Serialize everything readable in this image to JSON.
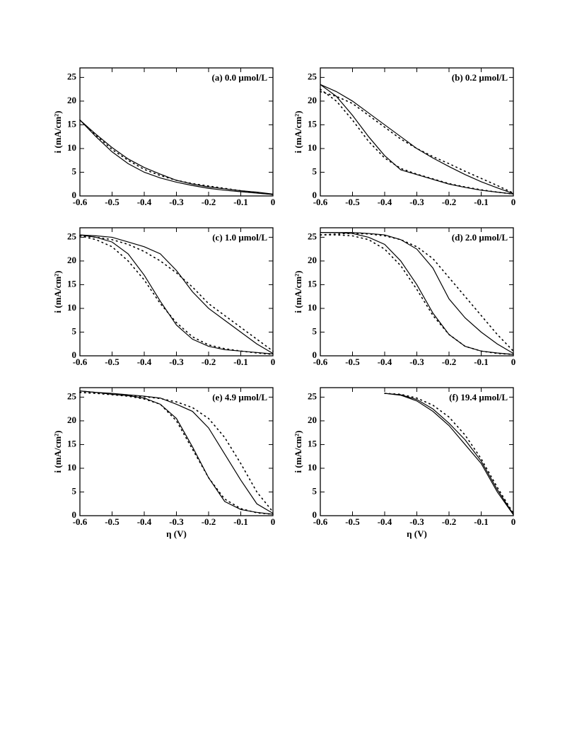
{
  "chart_data": [
    {
      "type": "line",
      "annotation": "(a)  0.0 μmol/L",
      "y_label": "i (mA/cm²)",
      "x": [
        -0.6,
        -0.55,
        -0.5,
        -0.45,
        -0.4,
        -0.35,
        -0.3,
        -0.25,
        -0.2,
        -0.15,
        -0.1,
        -0.05,
        0
      ],
      "series": [
        {
          "color": "#000000",
          "style": "solid",
          "values": [
            16,
            13,
            10.2,
            7.8,
            6,
            4.6,
            3.3,
            2.5,
            1.9,
            1.5,
            1.1,
            0.8,
            0.4
          ]
        },
        {
          "color": "#000000",
          "style": "solid",
          "values": [
            16,
            12.5,
            9.3,
            6.8,
            5,
            3.8,
            2.9,
            2.2,
            1.6,
            1.2,
            0.9,
            0.6,
            0.3
          ]
        },
        {
          "color": "#000000",
          "style": "dotted",
          "values": [
            16,
            12.8,
            9.8,
            7.5,
            5.6,
            4.3,
            3.3,
            2.6,
            2.1,
            1.6,
            1.1,
            0.7,
            0.3
          ]
        }
      ],
      "xlim": [
        -0.6,
        0
      ],
      "ylim": [
        0,
        27
      ],
      "xticks": [
        -0.6,
        -0.5,
        -0.4,
        -0.3,
        -0.2,
        -0.1,
        0
      ],
      "yticks": [
        0,
        5,
        10,
        15,
        20,
        25
      ]
    },
    {
      "type": "line",
      "annotation": "(b)  0.2 μmol/L",
      "y_label": "i (mA/cm²)",
      "x": [
        -0.6,
        -0.55,
        -0.5,
        -0.45,
        -0.4,
        -0.35,
        -0.3,
        -0.25,
        -0.2,
        -0.15,
        -0.1,
        -0.05,
        0
      ],
      "series": [
        {
          "color": "#000000",
          "style": "solid",
          "values": [
            23.5,
            22,
            20,
            17.5,
            15,
            12.5,
            10,
            8,
            6.2,
            4.5,
            3,
            1.7,
            0.5
          ]
        },
        {
          "color": "#000000",
          "style": "solid",
          "values": [
            23.5,
            21,
            17,
            12.5,
            8.5,
            5.5,
            4.5,
            3.5,
            2.5,
            1.8,
            1.2,
            0.8,
            0.4
          ]
        },
        {
          "color": "#000000",
          "style": "dotted",
          "values": [
            22,
            21,
            19.5,
            17,
            14.5,
            12,
            10,
            8.3,
            6.8,
            5.2,
            3.7,
            2.2,
            0.6
          ]
        },
        {
          "color": "#000000",
          "style": "dotted",
          "values": [
            22.5,
            20,
            16,
            11.5,
            8,
            5.8,
            4.6,
            3.6,
            2.6,
            1.9,
            1.3,
            0.8,
            0.4
          ]
        }
      ],
      "xlim": [
        -0.6,
        0
      ],
      "ylim": [
        0,
        27
      ],
      "xticks": [
        -0.6,
        -0.5,
        -0.4,
        -0.3,
        -0.2,
        -0.1,
        0
      ],
      "yticks": [
        0,
        5,
        10,
        15,
        20,
        25
      ]
    },
    {
      "type": "line",
      "annotation": "(c)  1.0 μmol/L",
      "y_label": "i (mA/cm²)",
      "x": [
        -0.6,
        -0.55,
        -0.5,
        -0.45,
        -0.4,
        -0.35,
        -0.3,
        -0.25,
        -0.2,
        -0.15,
        -0.1,
        -0.05,
        0
      ],
      "series": [
        {
          "color": "#000000",
          "style": "solid",
          "values": [
            25.5,
            25.3,
            25,
            24,
            23,
            21.5,
            18,
            13.5,
            10,
            7.5,
            5,
            2.5,
            0.5
          ]
        },
        {
          "color": "#000000",
          "style": "solid",
          "values": [
            25.5,
            25,
            24,
            21.5,
            17,
            11.5,
            6.5,
            3.5,
            2,
            1.3,
            1,
            0.7,
            0.4
          ]
        },
        {
          "color": "#000000",
          "style": "dotted",
          "values": [
            25.3,
            25,
            24.5,
            23.5,
            22,
            20,
            17.5,
            14.5,
            11,
            8.5,
            6,
            3.5,
            1
          ]
        },
        {
          "color": "#000000",
          "style": "dotted",
          "values": [
            25.3,
            24.5,
            23,
            20,
            16,
            11,
            7,
            4,
            2.3,
            1.5,
            1,
            0.6,
            0.3
          ]
        }
      ],
      "xlim": [
        -0.6,
        0
      ],
      "ylim": [
        0,
        27
      ],
      "xticks": [
        -0.6,
        -0.5,
        -0.4,
        -0.3,
        -0.2,
        -0.1,
        0
      ],
      "yticks": [
        0,
        5,
        10,
        15,
        20,
        25
      ]
    },
    {
      "type": "line",
      "annotation": "(d)  2.0 μmol/L",
      "y_label": "i (mA/cm²)",
      "x": [
        -0.6,
        -0.55,
        -0.5,
        -0.45,
        -0.4,
        -0.35,
        -0.3,
        -0.25,
        -0.2,
        -0.15,
        -0.1,
        -0.05,
        0
      ],
      "series": [
        {
          "color": "#000000",
          "style": "solid",
          "values": [
            26,
            26,
            26,
            25.8,
            25.5,
            24.5,
            22.5,
            18.5,
            12,
            8,
            5,
            2.5,
            0.5
          ]
        },
        {
          "color": "#000000",
          "style": "solid",
          "values": [
            26,
            26,
            25.8,
            25,
            23.5,
            20,
            15,
            9,
            4.5,
            2,
            1,
            0.6,
            0.3
          ]
        },
        {
          "color": "#000000",
          "style": "dotted",
          "values": [
            25.5,
            25.7,
            25.8,
            25.7,
            25.3,
            24.5,
            23,
            20.5,
            16.5,
            12.5,
            8.5,
            4.5,
            1
          ]
        },
        {
          "color": "#000000",
          "style": "dotted",
          "values": [
            25.5,
            25.5,
            25.3,
            24.5,
            22.5,
            19,
            14,
            8.5,
            4.5,
            2,
            1,
            0.5,
            0.3
          ]
        }
      ],
      "xlim": [
        -0.6,
        0
      ],
      "ylim": [
        0,
        27
      ],
      "xticks": [
        -0.6,
        -0.5,
        -0.4,
        -0.3,
        -0.2,
        -0.1,
        0
      ],
      "yticks": [
        0,
        5,
        10,
        15,
        20,
        25
      ]
    },
    {
      "type": "line",
      "annotation": "(e)  4.9 μmol/L",
      "y_label": "i (mA/cm²)",
      "x_label": "η (V)",
      "x": [
        -0.6,
        -0.55,
        -0.5,
        -0.45,
        -0.4,
        -0.35,
        -0.3,
        -0.25,
        -0.2,
        -0.15,
        -0.1,
        -0.05,
        0
      ],
      "series": [
        {
          "color": "#000000",
          "style": "solid",
          "values": [
            26.3,
            26,
            25.8,
            25.5,
            25.2,
            24.8,
            23.5,
            22,
            18.5,
            13,
            7.5,
            2.5,
            0.5
          ]
        },
        {
          "color": "#000000",
          "style": "solid",
          "values": [
            26.3,
            26,
            25.6,
            25.3,
            24.8,
            23.5,
            20.5,
            14.5,
            8,
            3,
            1.3,
            0.7,
            0.3
          ]
        },
        {
          "color": "#000000",
          "style": "dotted",
          "values": [
            26,
            25.8,
            25.6,
            25.4,
            25.1,
            24.7,
            24,
            22.8,
            20.5,
            16.5,
            11,
            5,
            0.8
          ]
        },
        {
          "color": "#000000",
          "style": "dotted",
          "values": [
            26,
            25.8,
            25.5,
            25.2,
            24.6,
            23.5,
            20,
            14,
            8,
            3.5,
            1.5,
            0.6,
            0.3
          ]
        }
      ],
      "xlim": [
        -0.6,
        0
      ],
      "ylim": [
        0,
        27
      ],
      "xticks": [
        -0.6,
        -0.5,
        -0.4,
        -0.3,
        -0.2,
        -0.1,
        0
      ],
      "yticks": [
        0,
        5,
        10,
        15,
        20,
        25
      ]
    },
    {
      "type": "line",
      "annotation": "(f)  19.4 μmol/L",
      "y_label": "i (mA/cm²)",
      "x_label": "η (V)",
      "x": [
        -0.4,
        -0.35,
        -0.3,
        -0.25,
        -0.2,
        -0.15,
        -0.1,
        -0.05,
        0
      ],
      "series": [
        {
          "color": "#000000",
          "style": "solid",
          "values": [
            25.8,
            25.5,
            24.5,
            22.5,
            19.5,
            16,
            11.5,
            5.5,
            0.3
          ]
        },
        {
          "color": "#000000",
          "style": "solid",
          "values": [
            25.8,
            25.4,
            24.2,
            22,
            19,
            15,
            11,
            5,
            0.2
          ]
        },
        {
          "color": "#000000",
          "style": "dotted",
          "values": [
            25.8,
            25.6,
            24.8,
            23.3,
            20.8,
            17,
            12,
            6,
            0.5
          ]
        }
      ],
      "xlim": [
        -0.6,
        0
      ],
      "ylim": [
        0,
        27
      ],
      "xticks": [
        -0.6,
        -0.5,
        -0.4,
        -0.3,
        -0.2,
        -0.1,
        0
      ],
      "yticks": [
        0,
        5,
        10,
        15,
        20,
        25
      ]
    }
  ]
}
